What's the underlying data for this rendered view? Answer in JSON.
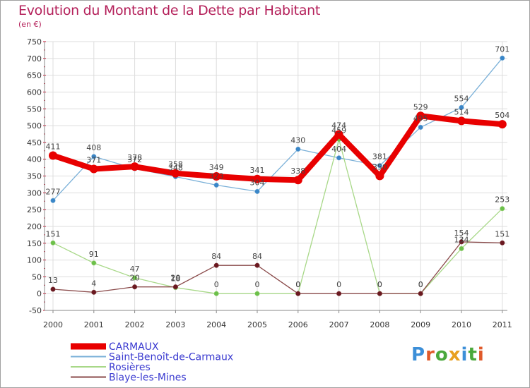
{
  "title": "Evolution du Montant de la Dette par Habitant",
  "subtitle": "(en €)",
  "logo": {
    "text": "Proxiti",
    "colors": [
      "#3c8fd8",
      "#e05a2a",
      "#4aa83c",
      "#e8a020",
      "#3c8fd8",
      "#4aa83c",
      "#e05a2a"
    ]
  },
  "chart_data": {
    "type": "line",
    "x": [
      "2000",
      "2001",
      "2002",
      "2003",
      "2004",
      "2005",
      "2006",
      "2007",
      "2008",
      "2009",
      "2010",
      "2011"
    ],
    "ylim": [
      -50,
      750
    ],
    "yticks": [
      "-50",
      "0",
      "50",
      "100",
      "150",
      "200",
      "250",
      "300",
      "350",
      "400",
      "450",
      "500",
      "550",
      "600",
      "650",
      "700",
      "750"
    ],
    "grid": true,
    "legend_position": "bottom-left",
    "series": [
      {
        "name": "Saint-Benoît-de-Carmaux",
        "color": "#7ab0d8",
        "marker": "#3a86c8",
        "values": [
          277,
          408,
          372,
          348,
          323,
          304,
          430,
          404,
          381,
          495,
          554,
          701
        ],
        "labels": [
          "277",
          "408",
          "372",
          "348",
          "323",
          "304",
          "430",
          "404",
          "381",
          "495",
          "554",
          "701"
        ]
      },
      {
        "name": "Rosières",
        "color": "#a8d888",
        "marker": "#6cc04a",
        "values": [
          151,
          91,
          47,
          18,
          0,
          0,
          0,
          459,
          0,
          0,
          134,
          253
        ],
        "labels": [
          "151",
          "91",
          "47",
          "18",
          "0",
          "0",
          "0",
          "459",
          "0",
          "0",
          "134",
          "253"
        ]
      },
      {
        "name": "Blaye-les-Mines",
        "color": "#8a4a4a",
        "marker": "#6a1820",
        "values": [
          13,
          4,
          20,
          20,
          84,
          84,
          0,
          0,
          0,
          0,
          154,
          151
        ],
        "labels": [
          "13",
          "4",
          "20",
          "20",
          "84",
          "84",
          "0",
          "0",
          "0",
          "0",
          "154",
          "151"
        ]
      },
      {
        "name": "CARMAUX",
        "color": "#e80000",
        "marker": "#e80000",
        "thick": true,
        "values": [
          411,
          371,
          378,
          358,
          349,
          341,
          338,
          474,
          350,
          529,
          514,
          504
        ],
        "labels": [
          "411",
          "371",
          "378",
          "358",
          "349",
          "341",
          "338",
          "474",
          "350",
          "529",
          "514",
          "504"
        ]
      }
    ],
    "legend": [
      {
        "name": "CARMAUX",
        "color": "#e80000",
        "thick": true
      },
      {
        "name": "Saint-Benoît-de-Carmaux",
        "color": "#7ab0d8"
      },
      {
        "name": "Rosières",
        "color": "#a8d888"
      },
      {
        "name": "Blaye-les-Mines",
        "color": "#8a4a4a"
      }
    ]
  }
}
